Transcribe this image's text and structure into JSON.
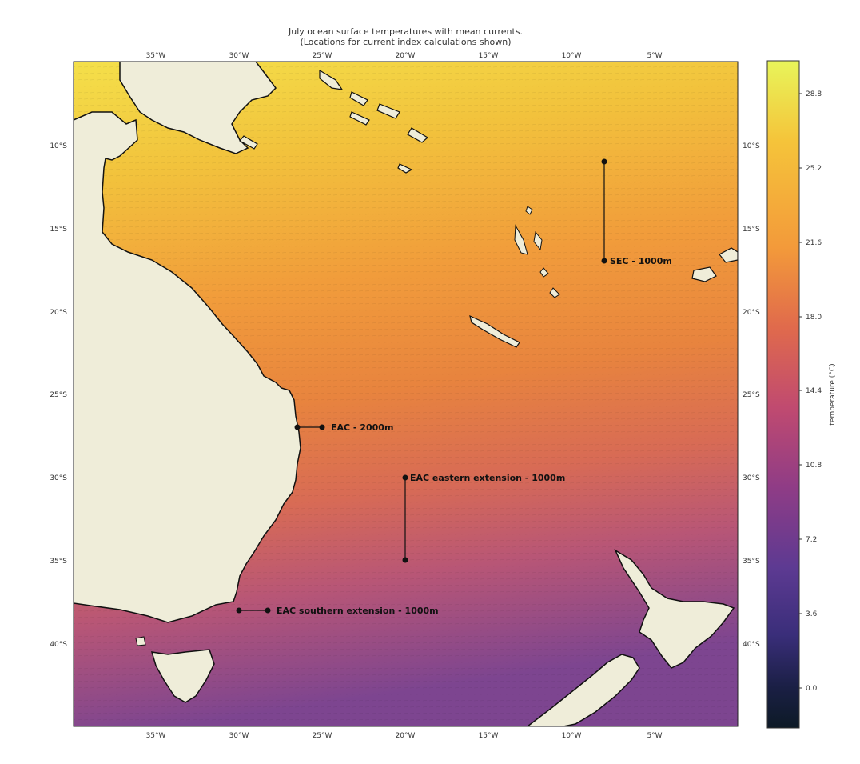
{
  "title_line1": "July ocean surface temperatures with mean currents.",
  "title_line2": "(Locations for current index calculations shown)",
  "lon_ticks": [
    "35°W",
    "30°W",
    "25°W",
    "20°W",
    "15°W",
    "10°W",
    "5°W"
  ],
  "lat_ticks": [
    "10°S",
    "15°S",
    "20°S",
    "25°S",
    "30°S",
    "35°S",
    "40°S"
  ],
  "colorbar": {
    "label": "temperature (°C)",
    "ticks": [
      "28.8",
      "25.2",
      "21.6",
      "18.0",
      "14.4",
      "10.8",
      "7.2",
      "3.6",
      "0.0"
    ],
    "colormap": [
      "#e8f55a",
      "#f5c43a",
      "#f39a3a",
      "#e06a4c",
      "#c04a70",
      "#8f3c86",
      "#5d3a92",
      "#3a2e7a",
      "#1a1f44",
      "#0d1a26"
    ]
  },
  "colors": {
    "land": "#efedd9",
    "coast_halo": "#ffffff",
    "ocean_warm": "#f2d23a",
    "ocean_mid": "#f0a038",
    "ocean_cool": "#d56a55",
    "ocean_cold": "#9a4a86",
    "marker": "#111111"
  },
  "index_lines": [
    {
      "name": "SEC - 1000m"
    },
    {
      "name": "EAC - 2000m"
    },
    {
      "name": "EAC eastern extension - 1000m"
    },
    {
      "name": "EAC southern extension - 1000m"
    }
  ]
}
